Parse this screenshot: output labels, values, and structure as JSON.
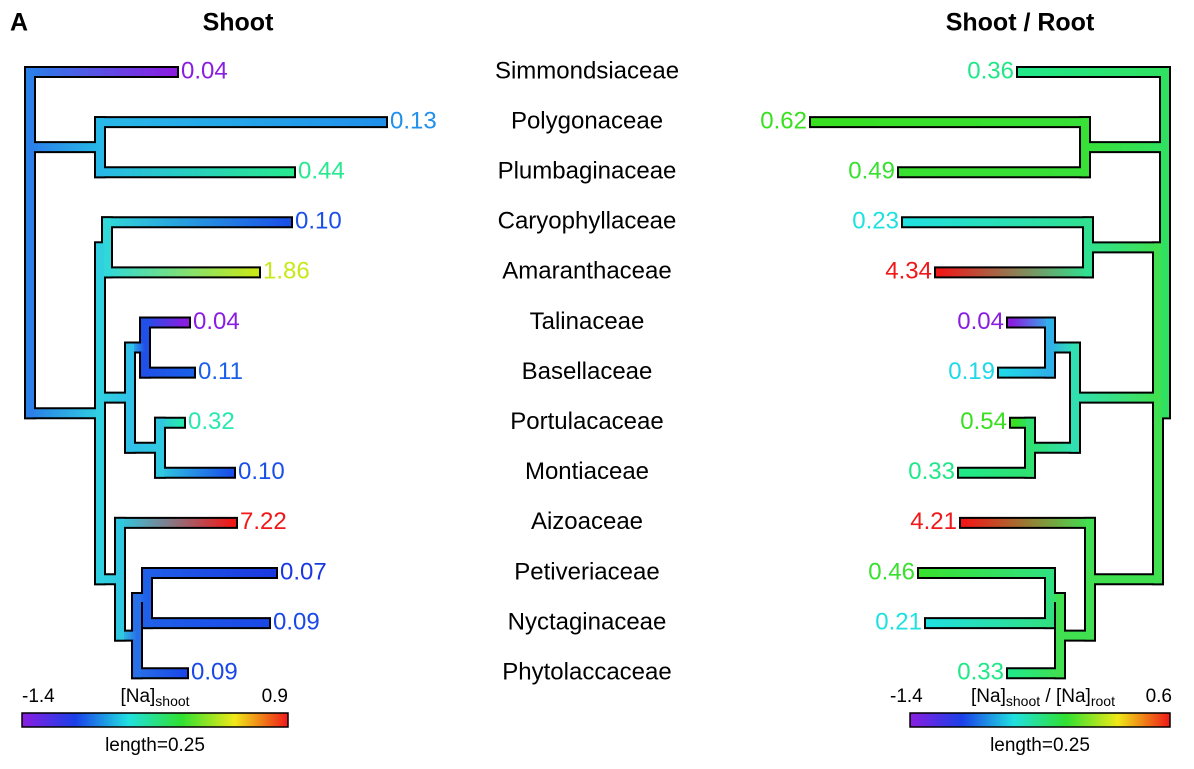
{
  "panel_label": "A",
  "left_title": "Shoot",
  "right_title": "Shoot / Root",
  "rows": [
    {
      "taxon": "Simmondsiaceae",
      "shoot": {
        "value": "0.04",
        "color": "#8a1ee0"
      },
      "ratio": {
        "value": "0.36",
        "color": "#20e888"
      }
    },
    {
      "taxon": "Polygonaceae",
      "shoot": {
        "value": "0.13",
        "color": "#2090ea"
      },
      "ratio": {
        "value": "0.62",
        "color": "#38e020"
      }
    },
    {
      "taxon": "Plumbaginaceae",
      "shoot": {
        "value": "0.44",
        "color": "#28e890"
      },
      "ratio": {
        "value": "0.49",
        "color": "#38e030"
      }
    },
    {
      "taxon": "Caryophyllaceae",
      "shoot": {
        "value": "0.10",
        "color": "#1a50e8"
      },
      "ratio": {
        "value": "0.23",
        "color": "#20e0e0"
      }
    },
    {
      "taxon": "Amaranthaceae",
      "shoot": {
        "value": "1.86",
        "color": "#c8e818"
      },
      "ratio": {
        "value": "4.34",
        "color": "#f01818"
      }
    },
    {
      "taxon": "Talinaceae",
      "shoot": {
        "value": "0.04",
        "color": "#8a1ee0"
      },
      "ratio": {
        "value": "0.04",
        "color": "#8a1ee0"
      }
    },
    {
      "taxon": "Basellaceae",
      "shoot": {
        "value": "0.11",
        "color": "#1a60e8"
      },
      "ratio": {
        "value": "0.19",
        "color": "#20d8e8"
      }
    },
    {
      "taxon": "Portulacaceae",
      "shoot": {
        "value": "0.32",
        "color": "#28e8b0"
      },
      "ratio": {
        "value": "0.54",
        "color": "#38e020"
      }
    },
    {
      "taxon": "Montiaceae",
      "shoot": {
        "value": "0.10",
        "color": "#1a50e8"
      },
      "ratio": {
        "value": "0.33",
        "color": "#20e888"
      }
    },
    {
      "taxon": "Aizoaceae",
      "shoot": {
        "value": "7.22",
        "color": "#f01818"
      },
      "ratio": {
        "value": "4.21",
        "color": "#f01818"
      }
    },
    {
      "taxon": "Petiveriaceae",
      "shoot": {
        "value": "0.07",
        "color": "#1a38e0"
      },
      "ratio": {
        "value": "0.46",
        "color": "#38e030"
      }
    },
    {
      "taxon": "Nyctaginaceae",
      "shoot": {
        "value": "0.09",
        "color": "#1a48e8"
      },
      "ratio": {
        "value": "0.21",
        "color": "#20e0e0"
      }
    },
    {
      "taxon": "Phytolaccaceae",
      "shoot": {
        "value": "0.09",
        "color": "#1a48e8"
      },
      "ratio": {
        "value": "0.33",
        "color": "#20e888"
      }
    }
  ],
  "left_scale": {
    "min": "-1.4",
    "max": "0.9",
    "label_main": "[Na]",
    "label_sub": "shoot",
    "length": "length=0.25"
  },
  "right_scale": {
    "min": "-1.4",
    "max": "0.6",
    "label_main1": "[Na]",
    "label_sub1": "shoot",
    "label_sep": " / ",
    "label_main2": "[Na]",
    "label_sub2": "root",
    "length": "length=0.25"
  }
}
